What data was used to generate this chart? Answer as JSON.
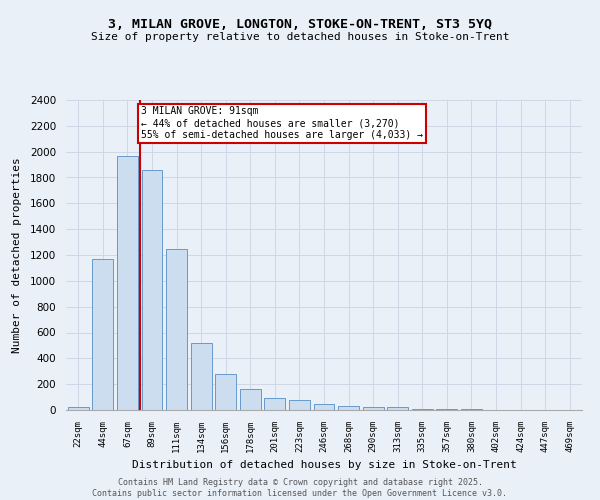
{
  "title1": "3, MILAN GROVE, LONGTON, STOKE-ON-TRENT, ST3 5YQ",
  "title2": "Size of property relative to detached houses in Stoke-on-Trent",
  "xlabel": "Distribution of detached houses by size in Stoke-on-Trent",
  "ylabel": "Number of detached properties",
  "bar_color": "#ccddf0",
  "bar_edge_color": "#6699cc",
  "categories": [
    "22sqm",
    "44sqm",
    "67sqm",
    "89sqm",
    "111sqm",
    "134sqm",
    "156sqm",
    "178sqm",
    "201sqm",
    "223sqm",
    "246sqm",
    "268sqm",
    "290sqm",
    "313sqm",
    "335sqm",
    "357sqm",
    "380sqm",
    "402sqm",
    "424sqm",
    "447sqm",
    "469sqm"
  ],
  "values": [
    25,
    1170,
    1970,
    1855,
    1245,
    515,
    275,
    160,
    90,
    80,
    45,
    30,
    25,
    20,
    10,
    5,
    5,
    3,
    2,
    2,
    1
  ],
  "vline_x_index": 3,
  "vline_color": "#cc0000",
  "annotation_text": "3 MILAN GROVE: 91sqm\n← 44% of detached houses are smaller (3,270)\n55% of semi-detached houses are larger (4,033) →",
  "annotation_box_color": "#ffffff",
  "annotation_box_edgecolor": "#cc0000",
  "ylim": [
    0,
    2400
  ],
  "yticks": [
    0,
    200,
    400,
    600,
    800,
    1000,
    1200,
    1400,
    1600,
    1800,
    2000,
    2200,
    2400
  ],
  "grid_color": "#d0d8e8",
  "background_color": "#eaf0f8",
  "footer_line1": "Contains HM Land Registry data © Crown copyright and database right 2025.",
  "footer_line2": "Contains public sector information licensed under the Open Government Licence v3.0."
}
